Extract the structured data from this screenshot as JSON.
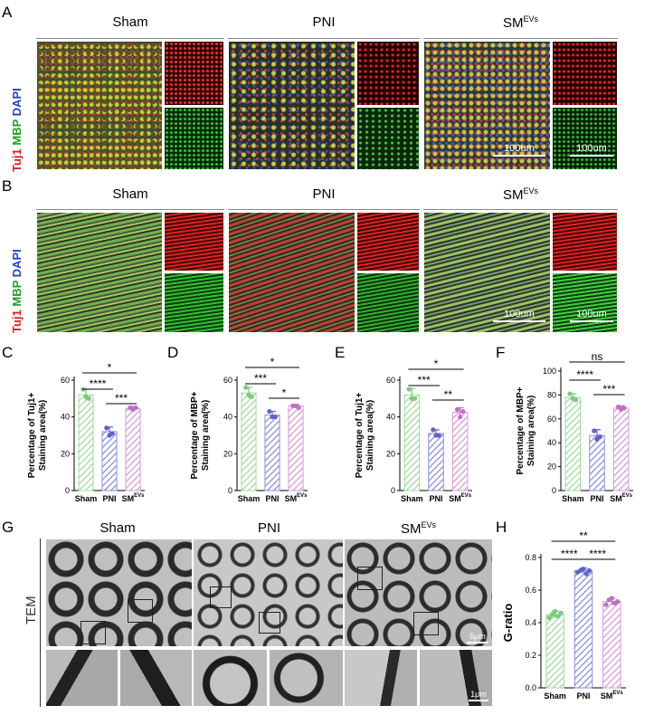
{
  "panels": {
    "A": "A",
    "B": "B",
    "C": "C",
    "D": "D",
    "E": "E",
    "F": "F",
    "G": "G",
    "H": "H"
  },
  "groups": {
    "sham": "Sham",
    "pni": "PNI",
    "sm": "SM",
    "sm_sup": "EVs"
  },
  "stain_labels": {
    "tuj1": "Tuj1",
    "mbp": "MBP",
    "dapi": "DAPI"
  },
  "scale_bars": {
    "if_merge": "100um",
    "if_single": "100um",
    "tem_main": "5μm",
    "tem_zoom": "1μm"
  },
  "tem_label": "TEM",
  "colors": {
    "sham": "#9fdc9c",
    "pni": "#8a8fe0",
    "sm": "#d89ad9",
    "sham_dark": "#7cc97a",
    "pni_dark": "#5e63c9",
    "sm_dark": "#c070c2"
  },
  "chart_data": [
    {
      "id": "C",
      "type": "bar",
      "categories": [
        "Sham",
        "PNI",
        "SM"
      ],
      "category_sup": [
        "",
        "",
        "EVs"
      ],
      "values": [
        52,
        32,
        44.5
      ],
      "errors": [
        3,
        2.5,
        1.2
      ],
      "points": [
        [
          55,
          51,
          50
        ],
        [
          34,
          30,
          31
        ],
        [
          45,
          44,
          45
        ]
      ],
      "ylabel_lines": [
        "Percentage of Tuj1+",
        "Staining area(%)"
      ],
      "ylim": [
        0,
        60
      ],
      "yticks": [
        0,
        20,
        40,
        60
      ],
      "significance": [
        {
          "from": 0,
          "to": 2,
          "label": "*"
        },
        {
          "from": 0,
          "to": 1,
          "label": "****"
        },
        {
          "from": 1,
          "to": 2,
          "label": "***"
        }
      ]
    },
    {
      "id": "D",
      "type": "bar",
      "categories": [
        "Sham",
        "PNI",
        "SM"
      ],
      "category_sup": [
        "",
        "",
        "EVs"
      ],
      "values": [
        53,
        41,
        46
      ],
      "errors": [
        3,
        2,
        0.8
      ],
      "points": [
        [
          56,
          52,
          51
        ],
        [
          43,
          40,
          40
        ],
        [
          46,
          46,
          45
        ]
      ],
      "ylabel_lines": [
        "Percentage of MBP+",
        "Staining area(%)"
      ],
      "ylim": [
        0,
        60
      ],
      "yticks": [
        0,
        20,
        40,
        60
      ],
      "significance": [
        {
          "from": 0,
          "to": 2,
          "label": "*"
        },
        {
          "from": 0,
          "to": 1,
          "label": "***"
        },
        {
          "from": 1,
          "to": 2,
          "label": "*"
        }
      ]
    },
    {
      "id": "E",
      "type": "bar",
      "categories": [
        "Sham",
        "PNI",
        "SM"
      ],
      "category_sup": [
        "",
        "",
        "EVs"
      ],
      "values": [
        52,
        31,
        42.5
      ],
      "errors": [
        3.5,
        2,
        2.5
      ],
      "points": [
        [
          55,
          50,
          50
        ],
        [
          33,
          30,
          30
        ],
        [
          44,
          40,
          43
        ]
      ],
      "ylabel_lines": [
        "Percentage of Tuj1+",
        "Staining area(%)"
      ],
      "ylim": [
        0,
        60
      ],
      "yticks": [
        0,
        20,
        40,
        60
      ],
      "significance": [
        {
          "from": 0,
          "to": 2,
          "label": "*"
        },
        {
          "from": 0,
          "to": 1,
          "label": "***"
        },
        {
          "from": 1,
          "to": 2,
          "label": "**"
        }
      ]
    },
    {
      "id": "F",
      "type": "bar",
      "categories": [
        "Sham",
        "PNI",
        "SM"
      ],
      "category_sup": [
        "",
        "",
        "EVs"
      ],
      "values": [
        78,
        46,
        69
      ],
      "errors": [
        3,
        5,
        2
      ],
      "points": [
        [
          81,
          77,
          76
        ],
        [
          50,
          43,
          45
        ],
        [
          70,
          68,
          69
        ]
      ],
      "ylabel_lines": [
        "Percentage of MBP+",
        "Staining area(%)"
      ],
      "ylim": [
        0,
        100
      ],
      "yticks": [
        0,
        20,
        40,
        60,
        80,
        100
      ],
      "significance": [
        {
          "from": 0,
          "to": 2,
          "label": "ns"
        },
        {
          "from": 0,
          "to": 1,
          "label": "****"
        },
        {
          "from": 1,
          "to": 2,
          "label": "***"
        }
      ]
    },
    {
      "id": "H",
      "type": "bar",
      "categories": [
        "Sham",
        "PNI",
        "SM"
      ],
      "category_sup": [
        "",
        "",
        "EVs"
      ],
      "values": [
        0.45,
        0.72,
        0.53
      ],
      "errors": [
        0.02,
        0.015,
        0.02
      ],
      "points": [
        [
          0.43,
          0.45,
          0.47,
          0.44,
          0.46
        ],
        [
          0.71,
          0.72,
          0.73,
          0.7,
          0.72
        ],
        [
          0.51,
          0.54,
          0.55,
          0.52,
          0.53
        ]
      ],
      "ylabel_lines": [
        "G-ratio"
      ],
      "ylim": [
        0,
        0.8
      ],
      "yticks": [
        0.0,
        0.2,
        0.4,
        0.6,
        0.8
      ],
      "significance": [
        {
          "from": 0,
          "to": 2,
          "label": "**"
        },
        {
          "from": 0,
          "to": 1,
          "label": "****"
        },
        {
          "from": 1,
          "to": 2,
          "label": "****"
        }
      ]
    }
  ]
}
